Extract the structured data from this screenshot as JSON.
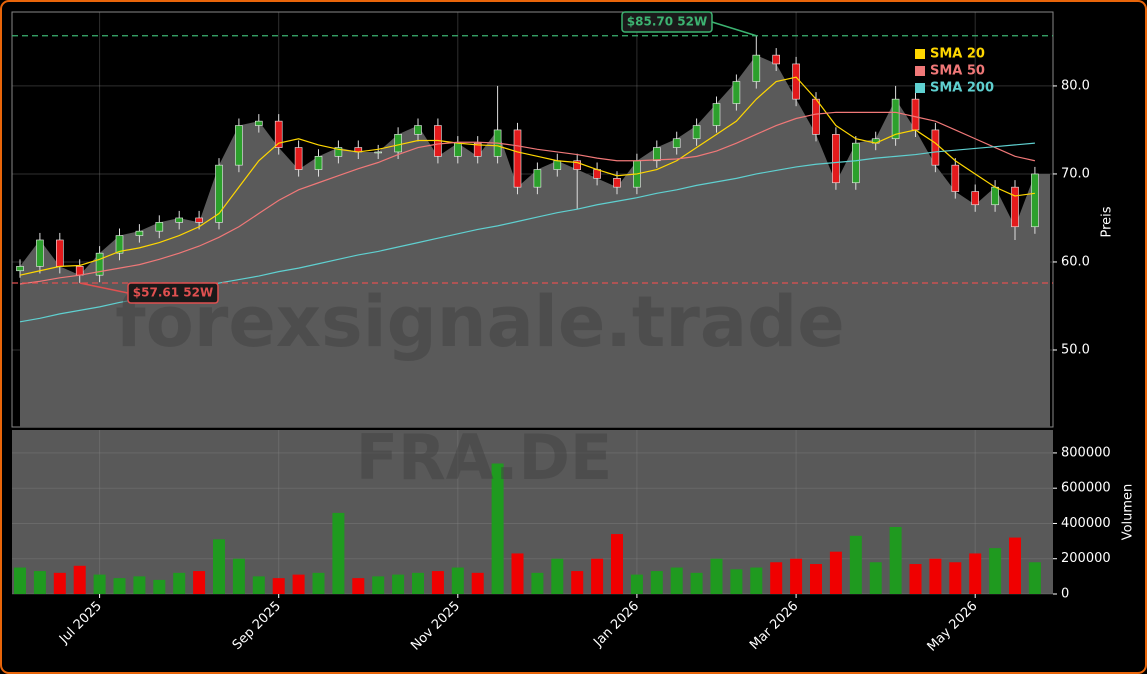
{
  "chart_data": {
    "type": "candlestick",
    "watermark": "forexsignale.trade",
    "symbol": "FRA.DE",
    "ylabel": "Preis",
    "categories": [
      null,
      null,
      null,
      null,
      "Jul 2025",
      null,
      null,
      null,
      null,
      null,
      null,
      null,
      null,
      "Sep 2025",
      null,
      null,
      null,
      null,
      null,
      null,
      null,
      null,
      "Nov 2025",
      null,
      null,
      null,
      null,
      null,
      null,
      null,
      null,
      "Jan 2026",
      null,
      null,
      null,
      null,
      null,
      null,
      null,
      "Mar 2026",
      null,
      null,
      null,
      null,
      null,
      null,
      null,
      null,
      "May 2026",
      null,
      null,
      null
    ],
    "candles": {
      "open": [
        59.0,
        59.5,
        62.5,
        59.5,
        58.5,
        61.0,
        63.0,
        63.5,
        64.5,
        65.0,
        64.5,
        71.0,
        75.5,
        76.0,
        73.0,
        70.5,
        72.0,
        73.0,
        72.5,
        72.5,
        74.5,
        75.5,
        72.0,
        73.5,
        72.0,
        75.0,
        68.5,
        70.5,
        71.5,
        70.5,
        69.5,
        68.5,
        71.5,
        73.0,
        74.0,
        75.5,
        78.0,
        80.5,
        83.5,
        82.5,
        78.5,
        74.5,
        69.0,
        73.5,
        74.0,
        78.5,
        75.0,
        71.0,
        68.0,
        66.5,
        68.5,
        64.0
      ],
      "high": [
        60.3,
        63.3,
        63.3,
        60.3,
        61.8,
        63.8,
        64.3,
        65.3,
        65.8,
        65.8,
        71.8,
        76.3,
        76.8,
        76.8,
        73.8,
        72.8,
        73.8,
        73.8,
        73.3,
        75.3,
        76.3,
        76.3,
        74.3,
        74.3,
        80.0,
        75.8,
        71.3,
        72.3,
        72.3,
        71.3,
        70.3,
        72.3,
        73.8,
        74.8,
        76.3,
        78.8,
        81.3,
        85.7,
        84.3,
        83.3,
        79.3,
        75.3,
        74.3,
        74.8,
        80.0,
        79.3,
        75.8,
        71.8,
        68.8,
        69.3,
        69.3,
        70.8
      ],
      "low": [
        58.2,
        58.7,
        58.7,
        57.61,
        57.7,
        60.2,
        62.2,
        62.7,
        63.7,
        63.7,
        63.7,
        70.2,
        74.7,
        72.2,
        69.7,
        69.7,
        71.2,
        71.7,
        71.7,
        71.7,
        73.7,
        71.2,
        71.2,
        71.2,
        71.2,
        67.7,
        67.7,
        69.7,
        66.0,
        68.7,
        67.7,
        67.7,
        70.7,
        72.2,
        73.2,
        74.7,
        77.2,
        79.7,
        81.7,
        77.7,
        73.7,
        68.2,
        68.2,
        72.7,
        73.2,
        74.2,
        70.2,
        67.2,
        65.7,
        65.7,
        62.5,
        63.2
      ],
      "close": [
        59.5,
        62.5,
        59.5,
        58.5,
        61.0,
        63.0,
        63.5,
        64.5,
        65.0,
        64.5,
        71.0,
        75.5,
        76.0,
        73.0,
        70.5,
        72.0,
        73.0,
        72.5,
        72.5,
        74.5,
        75.5,
        72.0,
        73.5,
        72.0,
        75.0,
        68.5,
        70.5,
        71.5,
        70.5,
        69.5,
        68.5,
        71.5,
        73.0,
        74.0,
        75.5,
        78.0,
        80.5,
        83.5,
        82.5,
        78.5,
        74.5,
        69.0,
        73.5,
        74.0,
        78.5,
        75.0,
        71.0,
        68.0,
        66.5,
        68.5,
        64.0,
        70.0
      ],
      "up_color": "#2ca02c",
      "down_color": "#e31a1c",
      "area_color": "#5a5a5a"
    },
    "series": [
      {
        "name": "SMA 20",
        "color": "#ffd700",
        "values": [
          58.5,
          59.0,
          59.5,
          59.6,
          60.3,
          61.2,
          61.6,
          62.2,
          63.0,
          64.0,
          65.5,
          68.5,
          71.5,
          73.5,
          74.0,
          73.3,
          72.8,
          72.5,
          72.8,
          73.3,
          73.8,
          73.8,
          73.5,
          73.3,
          73.2,
          72.5,
          72.0,
          71.5,
          71.3,
          70.5,
          69.8,
          70.0,
          70.5,
          71.5,
          73.0,
          74.5,
          76.0,
          78.5,
          80.5,
          81.0,
          78.5,
          75.5,
          74.0,
          73.5,
          74.5,
          75.0,
          73.5,
          71.5,
          70.0,
          68.5,
          67.5,
          67.8
        ]
      },
      {
        "name": "SMA 50",
        "color": "#f07878",
        "values": [
          57.5,
          57.8,
          58.2,
          58.5,
          58.9,
          59.3,
          59.7,
          60.3,
          61.0,
          61.8,
          62.8,
          64.0,
          65.5,
          67.0,
          68.2,
          69.0,
          69.8,
          70.6,
          71.3,
          72.2,
          73.0,
          73.4,
          73.6,
          73.6,
          73.5,
          73.2,
          72.8,
          72.5,
          72.2,
          71.8,
          71.5,
          71.5,
          71.6,
          71.7,
          72.0,
          72.6,
          73.5,
          74.5,
          75.5,
          76.3,
          76.8,
          77.0,
          77.0,
          77.0,
          77.0,
          76.5,
          76.0,
          75.0,
          74.0,
          73.0,
          72.0,
          71.5
        ]
      },
      {
        "name": "SMA 200",
        "color": "#5fd0d0",
        "values": [
          53.2,
          53.6,
          54.1,
          54.5,
          54.9,
          55.4,
          55.8,
          56.3,
          56.7,
          57.1,
          57.6,
          58.0,
          58.4,
          58.9,
          59.3,
          59.8,
          60.3,
          60.8,
          61.2,
          61.7,
          62.2,
          62.7,
          63.2,
          63.7,
          64.1,
          64.6,
          65.1,
          65.6,
          66.0,
          66.5,
          66.9,
          67.3,
          67.8,
          68.2,
          68.7,
          69.1,
          69.5,
          70.0,
          70.4,
          70.8,
          71.1,
          71.3,
          71.5,
          71.8,
          72.0,
          72.2,
          72.5,
          72.7,
          72.9,
          73.1,
          73.3,
          73.5
        ]
      }
    ],
    "ylim": [
      41.25,
      88.4
    ],
    "yticks": [
      {
        "value": 50,
        "label": "50.0"
      },
      {
        "value": 60,
        "label": "60.0"
      },
      {
        "value": 70,
        "label": "70.0"
      },
      {
        "value": 80,
        "label": "80.0"
      }
    ],
    "reference_lines": [
      {
        "label": "$85.70 52W",
        "value": 85.7,
        "color": "#3cb371"
      },
      {
        "label": "$57.61 52W",
        "value": 57.61,
        "color": "#e05050"
      }
    ],
    "legend": "upper right",
    "grid": true,
    "volume": {
      "ylabel": "Volumen",
      "ylim": [
        0,
        930000
      ],
      "yticks": [
        0,
        200000,
        400000,
        600000,
        800000
      ],
      "up_color": "#1f9a1f",
      "down_color": "#f00000",
      "values": [
        150000,
        130000,
        120000,
        160000,
        110000,
        90000,
        100000,
        80000,
        120000,
        130000,
        310000,
        200000,
        100000,
        90000,
        110000,
        120000,
        460000,
        90000,
        100000,
        110000,
        120000,
        130000,
        150000,
        120000,
        740000,
        230000,
        120000,
        200000,
        130000,
        200000,
        340000,
        110000,
        130000,
        150000,
        120000,
        200000,
        140000,
        150000,
        180000,
        200000,
        170000,
        240000,
        330000,
        180000,
        380000,
        170000,
        200000,
        180000,
        230000,
        260000,
        320000,
        180000
      ]
    }
  }
}
